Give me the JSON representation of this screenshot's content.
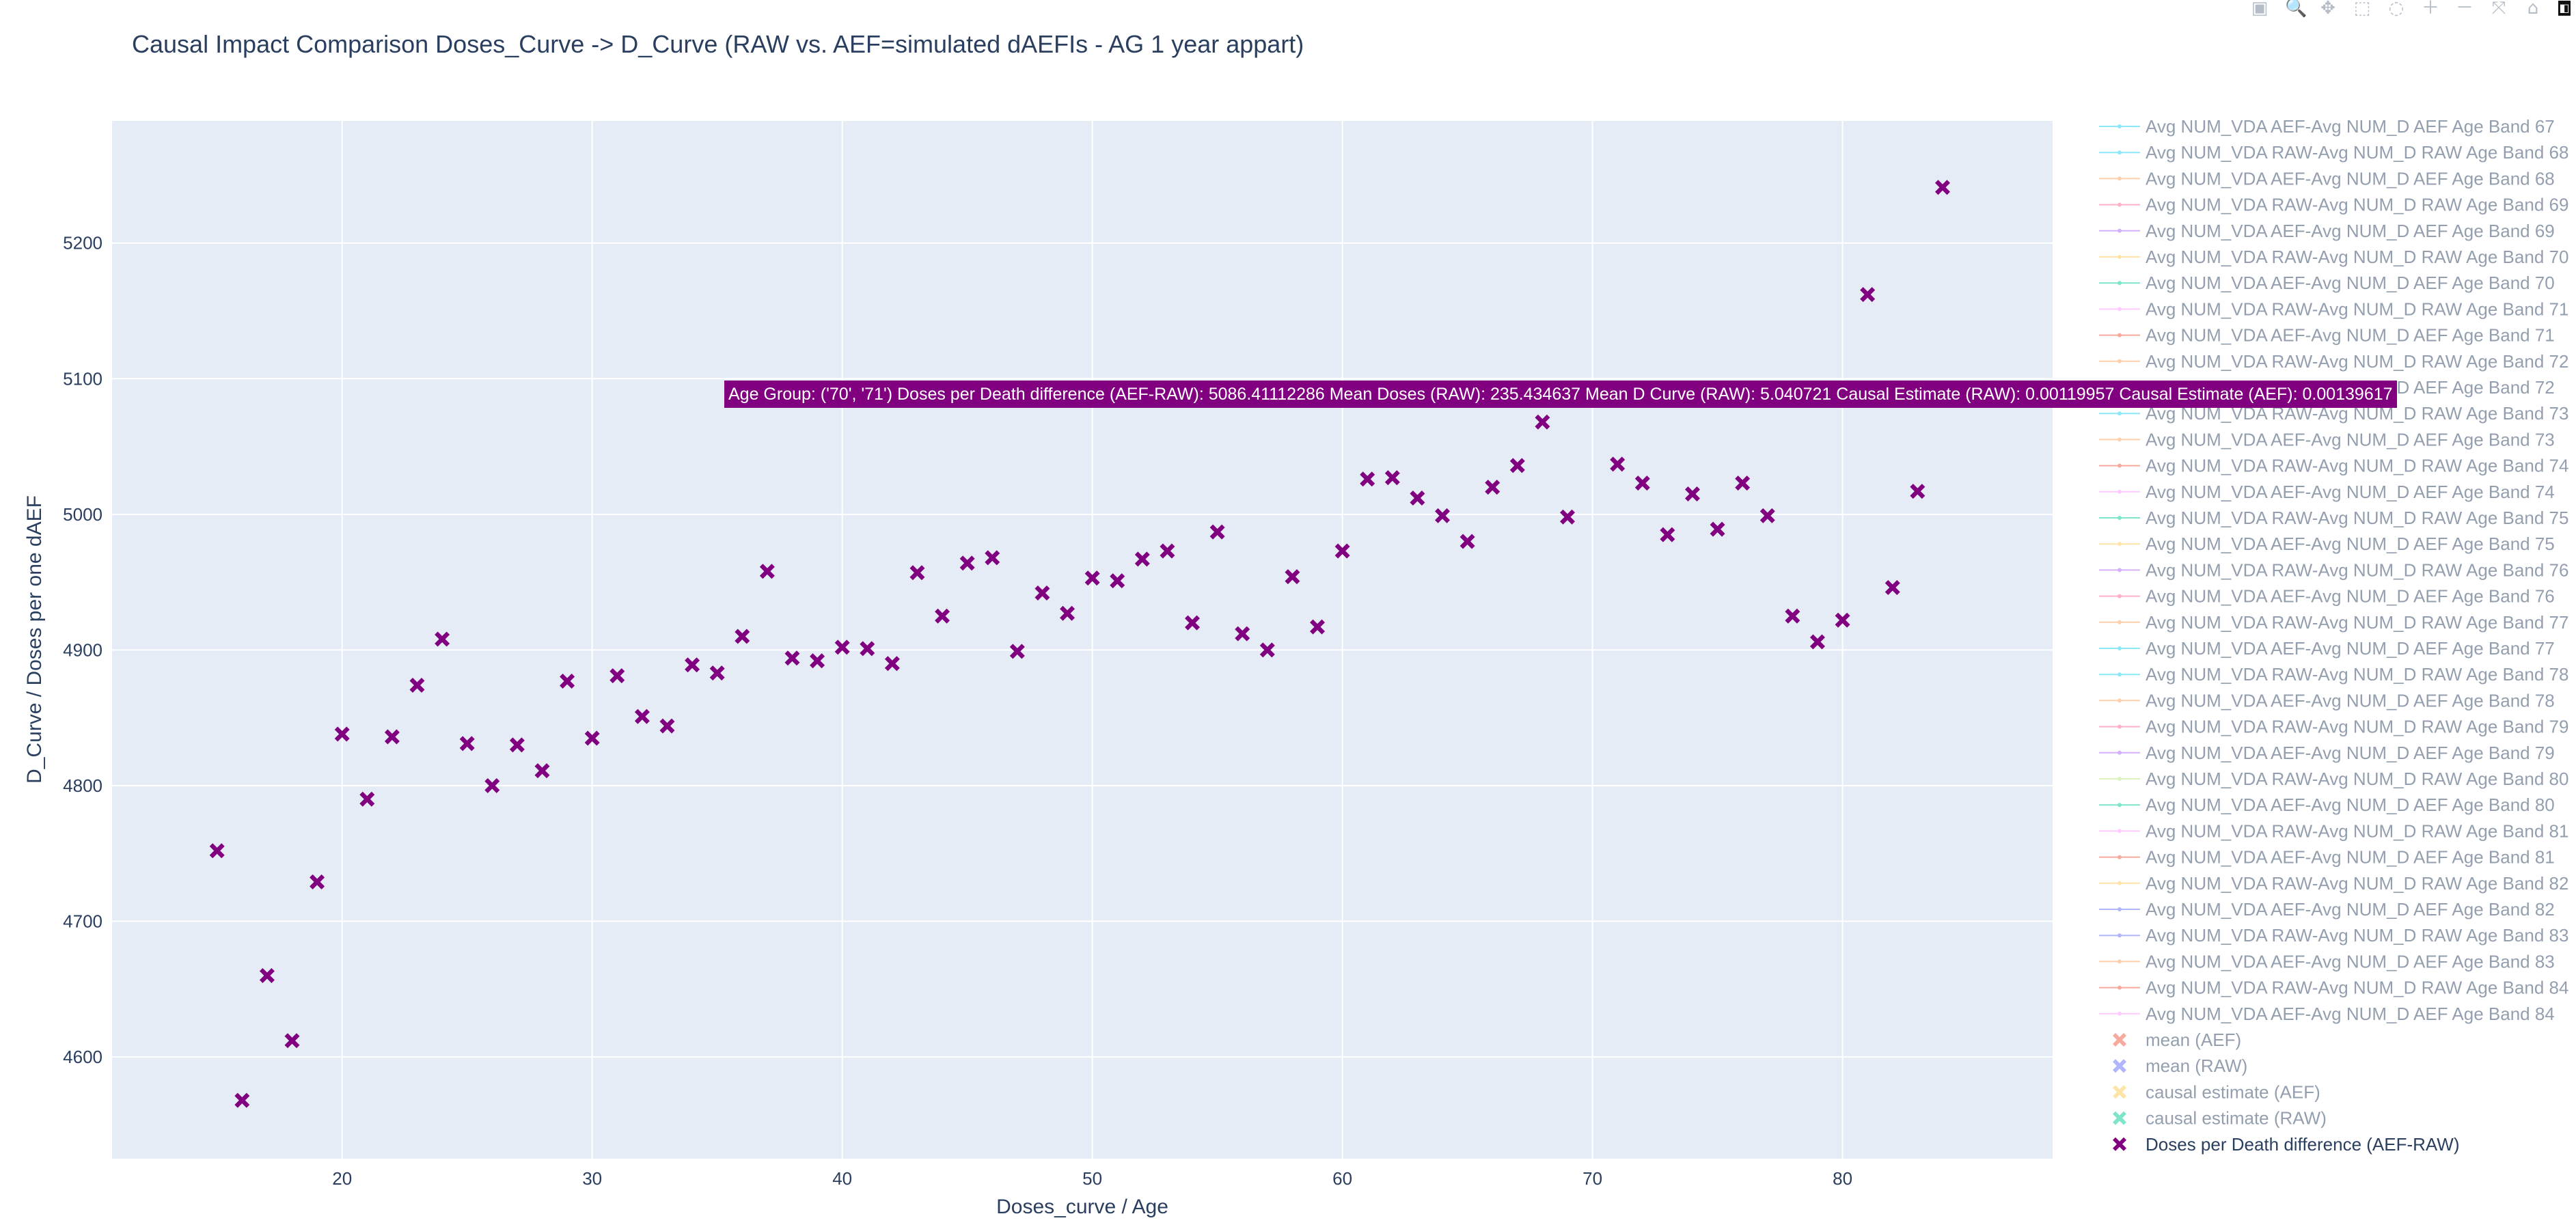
{
  "title": "Causal Impact Comparison Doses_Curve -> D_Curve  (RAW vs. AEF=simulated dAEFIs - AG 1 year appart)",
  "tooltip": "Age Group: ('70', '71') Doses per Death difference (AEF-RAW): 5086.41112286 Mean Doses (RAW): 235.434637 Mean D Curve (RAW): 5.040721 Causal Estimate (RAW): 0.00119957 Causal Estimate (AEF): 0.00139617",
  "modebar": [
    {
      "name": "camera-icon",
      "glyph": "▣"
    },
    {
      "name": "zoom-icon",
      "glyph": "🔍"
    },
    {
      "name": "pan-icon",
      "glyph": "✥"
    },
    {
      "name": "box-select-icon",
      "glyph": "⬚"
    },
    {
      "name": "lasso-select-icon",
      "glyph": "◌"
    },
    {
      "name": "zoom-in-icon",
      "glyph": "＋"
    },
    {
      "name": "zoom-out-icon",
      "glyph": "－"
    },
    {
      "name": "autoscale-icon",
      "glyph": "⤧"
    },
    {
      "name": "reset-axes-icon",
      "glyph": "⌂"
    },
    {
      "name": "plotly-logo-icon",
      "glyph": "◧"
    }
  ],
  "colors": {
    "plot_bg": "#e5ecf6",
    "grid": "#ffffff",
    "text": "#2a3f5f",
    "marker": "#800080",
    "legend_hidden_text": "#a8aeb8"
  },
  "legend": {
    "line_entries": [
      {
        "label": "Avg NUM_VDA AEF-Avg NUM_D AEF Age Band 67",
        "color": "#19d3f3"
      },
      {
        "label": "Avg NUM_VDA RAW-Avg NUM_D RAW Age Band 68",
        "color": "#19d3f3"
      },
      {
        "label": "Avg NUM_VDA AEF-Avg NUM_D AEF Age Band 68",
        "color": "#ffa15a"
      },
      {
        "label": "Avg NUM_VDA RAW-Avg NUM_D RAW Age Band 69",
        "color": "#ff6692"
      },
      {
        "label": "Avg NUM_VDA AEF-Avg NUM_D AEF Age Band 69",
        "color": "#ab63fa"
      },
      {
        "label": "Avg NUM_VDA RAW-Avg NUM_D RAW Age Band 70",
        "color": "#fecb52"
      },
      {
        "label": "Avg NUM_VDA AEF-Avg NUM_D AEF Age Band 70",
        "color": "#00cc96"
      },
      {
        "label": "Avg NUM_VDA RAW-Avg NUM_D RAW Age Band 71",
        "color": "#ff97ff"
      },
      {
        "label": "Avg NUM_VDA AEF-Avg NUM_D AEF Age Band 71",
        "color": "#ef553b"
      },
      {
        "label": "Avg NUM_VDA RAW-Avg NUM_D RAW Age Band 72",
        "color": "#ffa15a"
      },
      {
        "label": "Avg NUM_VDA AEF-Avg NUM_D AEF Age Band 72",
        "color": "#b6e880"
      },
      {
        "label": "Avg NUM_VDA RAW-Avg NUM_D RAW Age Band 73",
        "color": "#19d3f3"
      },
      {
        "label": "Avg NUM_VDA AEF-Avg NUM_D AEF Age Band 73",
        "color": "#ffa15a"
      },
      {
        "label": "Avg NUM_VDA RAW-Avg NUM_D RAW Age Band 74",
        "color": "#ef553b"
      },
      {
        "label": "Avg NUM_VDA AEF-Avg NUM_D AEF Age Band 74",
        "color": "#ff97ff"
      },
      {
        "label": "Avg NUM_VDA RAW-Avg NUM_D RAW Age Band 75",
        "color": "#00cc96"
      },
      {
        "label": "Avg NUM_VDA AEF-Avg NUM_D AEF Age Band 75",
        "color": "#fecb52"
      },
      {
        "label": "Avg NUM_VDA RAW-Avg NUM_D RAW Age Band 76",
        "color": "#ab63fa"
      },
      {
        "label": "Avg NUM_VDA AEF-Avg NUM_D AEF Age Band 76",
        "color": "#ff6692"
      },
      {
        "label": "Avg NUM_VDA RAW-Avg NUM_D RAW Age Band 77",
        "color": "#ffa15a"
      },
      {
        "label": "Avg NUM_VDA AEF-Avg NUM_D AEF Age Band 77",
        "color": "#19d3f3"
      },
      {
        "label": "Avg NUM_VDA RAW-Avg NUM_D RAW Age Band 78",
        "color": "#19d3f3"
      },
      {
        "label": "Avg NUM_VDA AEF-Avg NUM_D AEF Age Band 78",
        "color": "#ffa15a"
      },
      {
        "label": "Avg NUM_VDA RAW-Avg NUM_D RAW Age Band 79",
        "color": "#ff6692"
      },
      {
        "label": "Avg NUM_VDA AEF-Avg NUM_D AEF Age Band 79",
        "color": "#ab63fa"
      },
      {
        "label": "Avg NUM_VDA RAW-Avg NUM_D RAW Age Band 80",
        "color": "#b6e880"
      },
      {
        "label": "Avg NUM_VDA AEF-Avg NUM_D AEF Age Band 80",
        "color": "#00cc96"
      },
      {
        "label": "Avg NUM_VDA RAW-Avg NUM_D RAW Age Band 81",
        "color": "#ff97ff"
      },
      {
        "label": "Avg NUM_VDA AEF-Avg NUM_D AEF Age Band 81",
        "color": "#ef553b"
      },
      {
        "label": "Avg NUM_VDA RAW-Avg NUM_D RAW Age Band 82",
        "color": "#fecb52"
      },
      {
        "label": "Avg NUM_VDA AEF-Avg NUM_D AEF Age Band 82",
        "color": "#636efa"
      },
      {
        "label": "Avg NUM_VDA RAW-Avg NUM_D RAW Age Band 83",
        "color": "#636efa"
      },
      {
        "label": "Avg NUM_VDA AEF-Avg NUM_D AEF Age Band 83",
        "color": "#ffa15a"
      },
      {
        "label": "Avg NUM_VDA RAW-Avg NUM_D RAW Age Band 84",
        "color": "#ef553b"
      },
      {
        "label": "Avg NUM_VDA AEF-Avg NUM_D AEF Age Band 84",
        "color": "#ff97ff"
      }
    ],
    "marker_entries": [
      {
        "label": "mean (AEF)",
        "color": "#ef553b",
        "visible": false
      },
      {
        "label": "mean (RAW)",
        "color": "#636efa",
        "visible": false
      },
      {
        "label": "causal estimate (AEF)",
        "color": "#fecb52",
        "visible": false
      },
      {
        "label": "causal estimate (RAW)",
        "color": "#00cc96",
        "visible": false
      },
      {
        "label": "Doses per Death difference (AEF-RAW)",
        "color": "#800080",
        "visible": true
      }
    ]
  },
  "chart_data": {
    "type": "scatter",
    "title": "Causal Impact Comparison Doses_Curve -> D_Curve  (RAW vs. AEF=simulated dAEFIs - AG 1 year appart)",
    "xlabel": "Doses_curve / Age",
    "ylabel": "D_Curve / Doses per one dAEF",
    "xlim": [
      10.8,
      88.4
    ],
    "ylim": [
      4525,
      5290
    ],
    "x_ticks": [
      20,
      30,
      40,
      50,
      60,
      70,
      80
    ],
    "y_ticks": [
      4600,
      4700,
      4800,
      4900,
      5000,
      5100,
      5200
    ],
    "grid": true,
    "legend_position": "right",
    "series": [
      {
        "name": "Doses per Death difference (AEF-RAW)",
        "marker": "x",
        "x": [
          15,
          16,
          17,
          18,
          19,
          20,
          21,
          22,
          23,
          24,
          25,
          26,
          27,
          28,
          29,
          30,
          31,
          32,
          33,
          34,
          35,
          36,
          37,
          38,
          39,
          40,
          41,
          42,
          43,
          44,
          45,
          46,
          47,
          48,
          49,
          50,
          51,
          52,
          53,
          54,
          55,
          56,
          57,
          58,
          59,
          60,
          61,
          62,
          63,
          64,
          65,
          66,
          67,
          68,
          69,
          71,
          72,
          73,
          74,
          75,
          76,
          77,
          78,
          79,
          80,
          81,
          82,
          83,
          84
        ],
        "y": [
          4752,
          4568,
          4660,
          4612,
          4729,
          4838,
          4790,
          4836,
          4874,
          4908,
          4831,
          4800,
          4830,
          4811,
          4877,
          4835,
          4881,
          4851,
          4844,
          4889,
          4883,
          4910,
          4958,
          4894,
          4892,
          4902,
          4901,
          4890,
          4957,
          4925,
          4964,
          4968,
          4899,
          4942,
          4927,
          4953,
          4951,
          4967,
          4973,
          4920,
          4987,
          4912,
          4900,
          4954,
          4917,
          4973,
          5026,
          5027,
          5012,
          4999,
          4980,
          5020,
          5036,
          5068,
          4998,
          5037,
          5023,
          4985,
          5015,
          4989,
          5023,
          4999,
          4925,
          4906,
          4922,
          5162,
          4946,
          5017,
          5241
        ]
      }
    ]
  }
}
